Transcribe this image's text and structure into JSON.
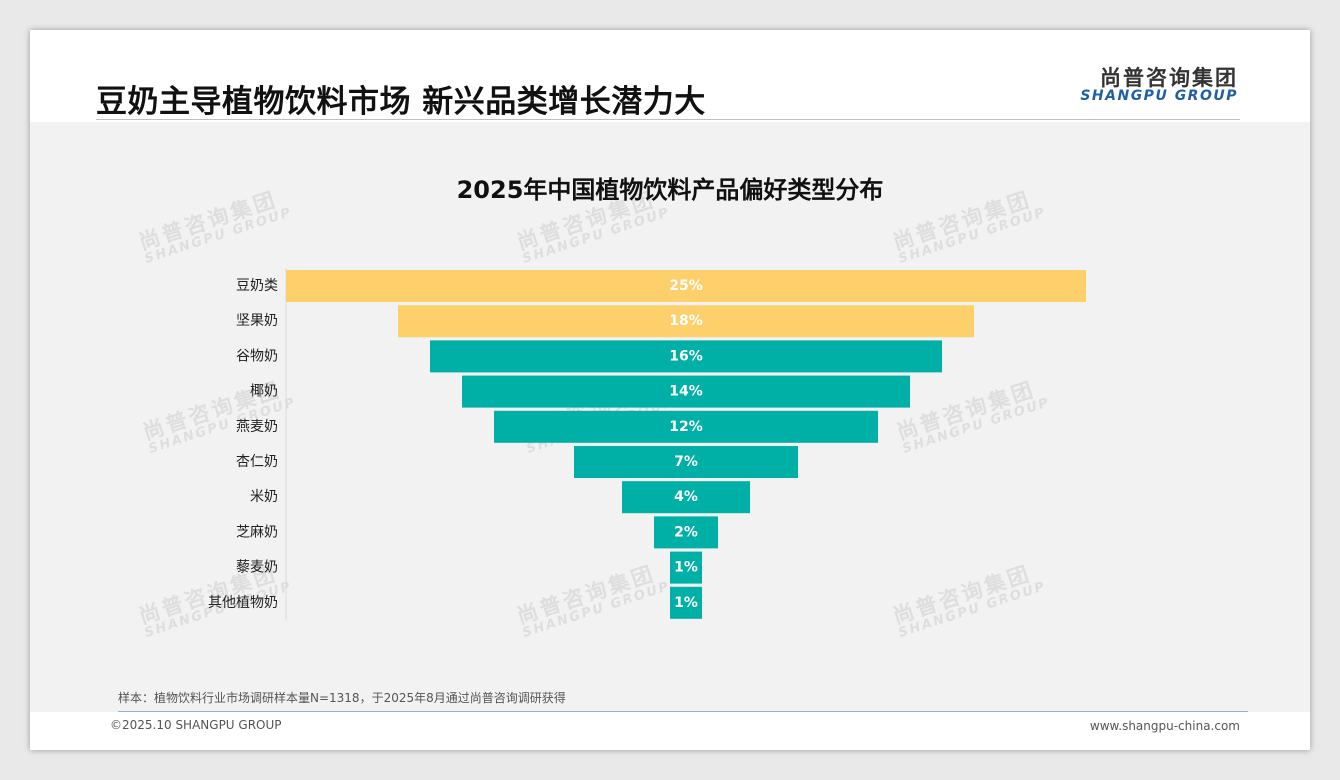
{
  "header": {
    "headline": "豆奶主导植物饮料市场 新兴品类增长潜力大",
    "logo_cn": "尚普咨询集团",
    "logo_en": "SHANGPU GROUP"
  },
  "watermark": {
    "cn": "尚普咨询集团",
    "en": "SHANGPU GROUP"
  },
  "chart_data": {
    "type": "bar",
    "orientation": "horizontal-centered",
    "title": "2025年中国植物饮料产品偏好类型分布",
    "categories": [
      "豆奶类",
      "坚果奶",
      "谷物奶",
      "椰奶",
      "燕麦奶",
      "杏仁奶",
      "米奶",
      "芝麻奶",
      "藜麦奶",
      "其他植物奶"
    ],
    "values": [
      25,
      18,
      16,
      14,
      12,
      7,
      4,
      2,
      1,
      1
    ],
    "value_labels": [
      "25%",
      "18%",
      "16%",
      "14%",
      "12%",
      "7%",
      "4%",
      "2%",
      "1%",
      "1%"
    ],
    "unit": "%",
    "highlight_count": 2,
    "colors": {
      "highlight": "#fdd06b",
      "normal": "#00b0a6"
    }
  },
  "footer": {
    "note": "样本：植物饮料行业市场调研样本量N=1318，于2025年8月通过尚普咨询调研获得",
    "copyright": "©2025.10 SHANGPU GROUP",
    "website": "www.shangpu-china.com"
  }
}
